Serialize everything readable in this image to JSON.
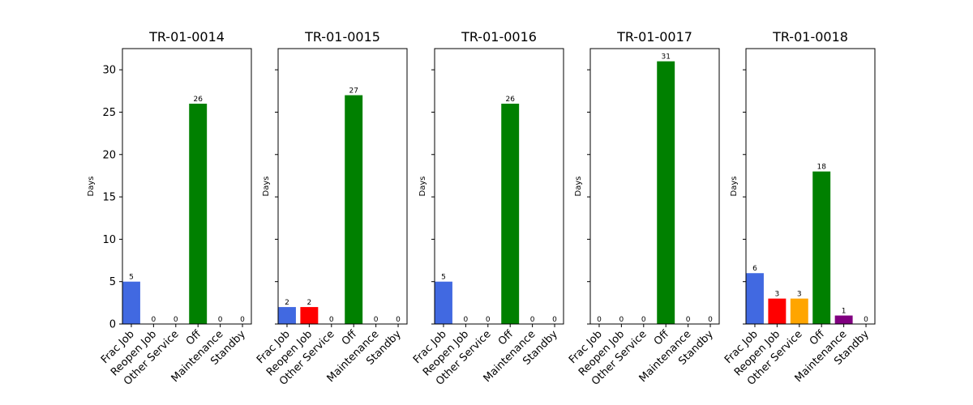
{
  "figure": {
    "shared_ylabel": "Days",
    "ylim": [
      0,
      32.5
    ],
    "yticks": [
      0,
      5,
      10,
      15,
      20,
      25,
      30
    ]
  },
  "chart_data": [
    {
      "type": "bar",
      "title": "TR-01-0014",
      "ylabel": "Days",
      "ylim": [
        0,
        32.5
      ],
      "categories": [
        "Frac Job",
        "Reopen Job",
        "Other Service",
        "Off",
        "Maintenance",
        "Standby"
      ],
      "values": [
        5,
        0,
        0,
        26,
        0,
        0
      ],
      "colors": [
        "#4169e1",
        "#ff0000",
        "#ffa500",
        "#008000",
        "#800080",
        "#808080"
      ],
      "show_ytick_labels": true,
      "grid": false
    },
    {
      "type": "bar",
      "title": "TR-01-0015",
      "ylabel": "Days",
      "ylim": [
        0,
        32.5
      ],
      "categories": [
        "Frac Job",
        "Reopen Job",
        "Other Service",
        "Off",
        "Maintenance",
        "Standby"
      ],
      "values": [
        2,
        2,
        0,
        27,
        0,
        0
      ],
      "colors": [
        "#4169e1",
        "#ff0000",
        "#ffa500",
        "#008000",
        "#800080",
        "#808080"
      ],
      "show_ytick_labels": false,
      "grid": false
    },
    {
      "type": "bar",
      "title": "TR-01-0016",
      "ylabel": "Days",
      "ylim": [
        0,
        32.5
      ],
      "categories": [
        "Frac Job",
        "Reopen Job",
        "Other Service",
        "Off",
        "Maintenance",
        "Standby"
      ],
      "values": [
        5,
        0,
        0,
        26,
        0,
        0
      ],
      "colors": [
        "#4169e1",
        "#ff0000",
        "#ffa500",
        "#008000",
        "#800080",
        "#808080"
      ],
      "show_ytick_labels": false,
      "grid": false
    },
    {
      "type": "bar",
      "title": "TR-01-0017",
      "ylabel": "Days",
      "ylim": [
        0,
        32.5
      ],
      "categories": [
        "Frac Job",
        "Reopen Job",
        "Other Service",
        "Off",
        "Maintenance",
        "Standby"
      ],
      "values": [
        0,
        0,
        0,
        31,
        0,
        0
      ],
      "colors": [
        "#4169e1",
        "#ff0000",
        "#ffa500",
        "#008000",
        "#800080",
        "#808080"
      ],
      "show_ytick_labels": false,
      "grid": false
    },
    {
      "type": "bar",
      "title": "TR-01-0018",
      "ylabel": "Days",
      "ylim": [
        0,
        32.5
      ],
      "categories": [
        "Frac Job",
        "Reopen Job",
        "Other Service",
        "Off",
        "Maintenance",
        "Standby"
      ],
      "values": [
        6,
        3,
        3,
        18,
        1,
        0
      ],
      "colors": [
        "#4169e1",
        "#ff0000",
        "#ffa500",
        "#008000",
        "#800080",
        "#808080"
      ],
      "show_ytick_labels": false,
      "grid": false
    }
  ]
}
